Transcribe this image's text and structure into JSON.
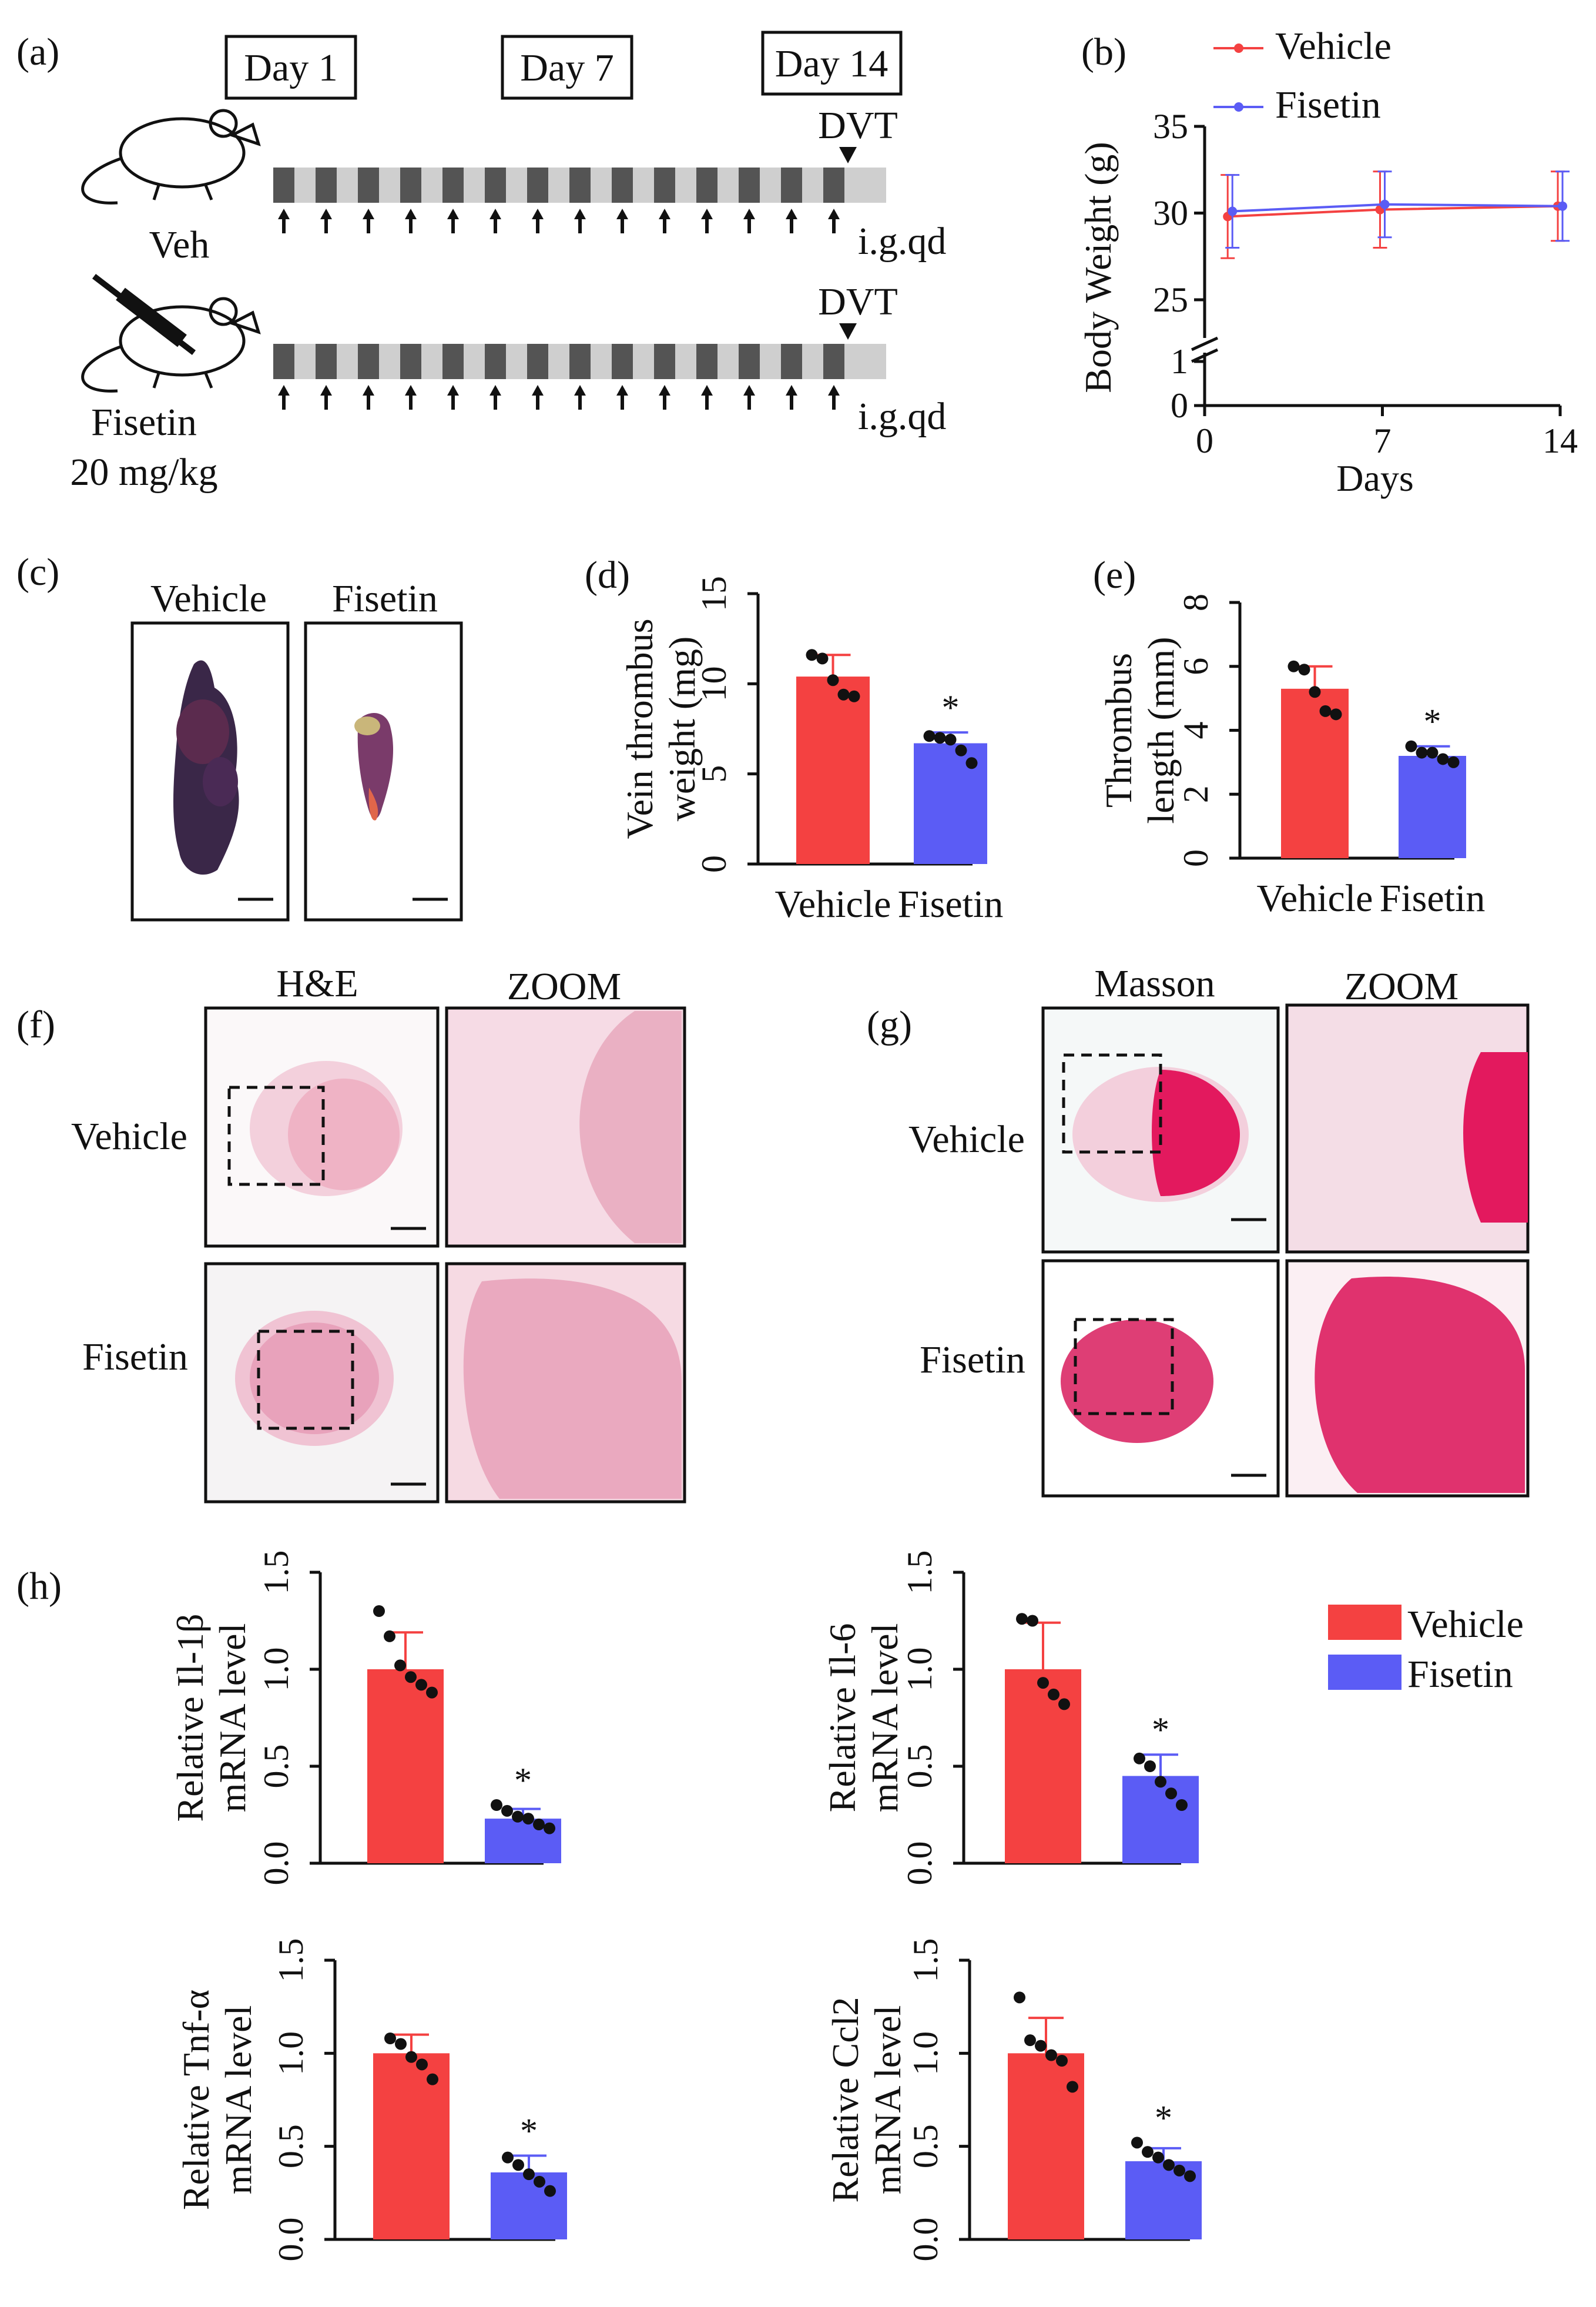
{
  "colors": {
    "vehicle": "#f44141",
    "fisetin": "#5b5cf5",
    "dark": "#545454",
    "light": "#cfcfcf",
    "axis": "#111111"
  },
  "panel_a": {
    "label": "(a)",
    "days": [
      "Day 1",
      "Day 7",
      "Day 14"
    ],
    "dvt_label": "DVT",
    "dosing": "i.g.qd",
    "group_veh": "Veh",
    "group_fisetin": "Fisetin",
    "group_fisetin_dose": "20 mg/kg"
  },
  "panel_c": {
    "label": "(c)",
    "col_vehicle": "Vehicle",
    "col_fisetin": "Fisetin"
  },
  "panel_f": {
    "label": "(f)",
    "stain": "H&E",
    "zoom": "ZOOM",
    "row_vehicle": "Vehicle",
    "row_fisetin": "Fisetin"
  },
  "panel_g": {
    "label": "(g)",
    "stain": "Masson",
    "zoom": "ZOOM",
    "row_vehicle": "Vehicle",
    "row_fisetin": "Fisetin"
  },
  "panel_h": {
    "label": "(h)",
    "legend": [
      "Vehicle",
      "Fisetin"
    ]
  },
  "chart_data": [
    {
      "id": "b",
      "panel_label": "(b)",
      "type": "line",
      "title": "",
      "xlabel": "Days",
      "ylabel": "Body Weight (g)",
      "x": [
        1,
        7,
        14
      ],
      "xticks": [
        "0",
        "7",
        "14"
      ],
      "yticks": [
        "0",
        "1",
        "25",
        "30",
        "35"
      ],
      "ylim": [
        25,
        35
      ],
      "y_break": true,
      "series": [
        {
          "name": "Vehicle",
          "values": [
            29.8,
            30.2,
            30.4
          ],
          "error": [
            2.4,
            2.2,
            2.0
          ]
        },
        {
          "name": "Fisetin",
          "values": [
            30.1,
            30.5,
            30.4
          ],
          "error": [
            2.1,
            1.9,
            2.0
          ]
        }
      ]
    },
    {
      "id": "d",
      "panel_label": "(d)",
      "type": "bar",
      "ylabel_lines": [
        "Vein thrombus",
        "weight (mg)"
      ],
      "categories": [
        "Vehicle",
        "Fisetin"
      ],
      "ylim": [
        0,
        15
      ],
      "yticks": [
        "0",
        "5",
        "10",
        "15"
      ],
      "values": [
        10.4,
        6.7
      ],
      "error": [
        1.2,
        0.6
      ],
      "points": [
        [
          11.6,
          11.4,
          10.2,
          9.4,
          9.3
        ],
        [
          7.1,
          7.0,
          6.9,
          6.3,
          5.6
        ]
      ],
      "annotations": [
        "",
        "*"
      ]
    },
    {
      "id": "e",
      "panel_label": "(e)",
      "type": "bar",
      "ylabel_lines": [
        "Thrombus",
        "length (mm)"
      ],
      "categories": [
        "Vehicle",
        "Fisetin"
      ],
      "ylim": [
        0,
        8
      ],
      "yticks": [
        "0",
        "2",
        "4",
        "6",
        "8"
      ],
      "values": [
        5.3,
        3.2
      ],
      "error": [
        0.7,
        0.3
      ],
      "points": [
        [
          6.0,
          5.9,
          5.2,
          4.6,
          4.5
        ],
        [
          3.5,
          3.3,
          3.3,
          3.1,
          3.0
        ]
      ],
      "annotations": [
        "",
        "*"
      ]
    },
    {
      "id": "h1",
      "type": "bar",
      "ylabel_lines": [
        "Relative Il-1β",
        "mRNA level"
      ],
      "categories": [
        "Vehicle",
        "Fisetin"
      ],
      "ylim": [
        0,
        1.5
      ],
      "yticks": [
        "0.0",
        "0.5",
        "1.0",
        "1.5"
      ],
      "values": [
        1.0,
        0.23
      ],
      "error": [
        0.19,
        0.05
      ],
      "points": [
        [
          1.3,
          1.17,
          1.02,
          0.96,
          0.92,
          0.88
        ],
        [
          0.3,
          0.27,
          0.24,
          0.23,
          0.2,
          0.18
        ]
      ],
      "annotations": [
        "",
        "*"
      ]
    },
    {
      "id": "h2",
      "type": "bar",
      "ylabel_lines": [
        "Relative Il-6",
        "mRNA level"
      ],
      "categories": [
        "Vehicle",
        "Fisetin"
      ],
      "ylim": [
        0,
        1.5
      ],
      "yticks": [
        "0.0",
        "0.5",
        "1.0",
        "1.5"
      ],
      "values": [
        1.0,
        0.45
      ],
      "error": [
        0.24,
        0.11
      ],
      "points": [
        [
          1.26,
          1.25,
          0.93,
          0.87,
          0.82
        ],
        [
          0.54,
          0.5,
          0.42,
          0.36,
          0.3
        ]
      ],
      "annotations": [
        "",
        "*"
      ]
    },
    {
      "id": "h3",
      "type": "bar",
      "ylabel_lines": [
        "Relative Tnf-α",
        "mRNA level"
      ],
      "categories": [
        "Vehicle",
        "Fisetin"
      ],
      "ylim": [
        0,
        1.5
      ],
      "yticks": [
        "0.0",
        "0.5",
        "1.0",
        "1.5"
      ],
      "values": [
        1.0,
        0.36
      ],
      "error": [
        0.1,
        0.09
      ],
      "points": [
        [
          1.08,
          1.05,
          0.98,
          0.94,
          0.86
        ],
        [
          0.44,
          0.4,
          0.35,
          0.31,
          0.26
        ]
      ],
      "annotations": [
        "",
        "*"
      ]
    },
    {
      "id": "h4",
      "type": "bar",
      "ylabel_lines": [
        "Relative Ccl2",
        "mRNA level"
      ],
      "categories": [
        "Vehicle",
        "Fisetin"
      ],
      "ylim": [
        0,
        1.5
      ],
      "yticks": [
        "0.0",
        "0.5",
        "1.0",
        "1.5"
      ],
      "values": [
        1.0,
        0.42
      ],
      "error": [
        0.19,
        0.07
      ],
      "points": [
        [
          1.3,
          1.07,
          1.04,
          0.99,
          0.96,
          0.82
        ],
        [
          0.52,
          0.47,
          0.44,
          0.4,
          0.37,
          0.34
        ]
      ],
      "annotations": [
        "",
        "*"
      ]
    }
  ]
}
